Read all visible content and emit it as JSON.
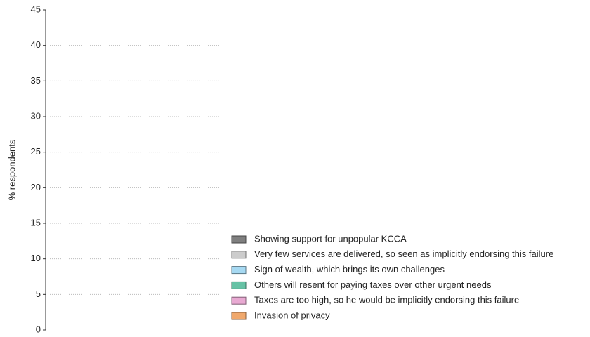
{
  "chart_data": {
    "type": "bar",
    "y_label": "% respondents",
    "categories": [
      null
    ],
    "series": [
      {
        "name": "Showing support for unpopular KCCA",
        "color": "#7f7f7f",
        "values": [
          0
        ]
      },
      {
        "name": "Very few services are delivered, so seen as implicitly endorsing this failure",
        "color": "#cccccc",
        "values": [
          0
        ]
      },
      {
        "name": "Sign of wealth, which brings its own challenges",
        "color": "#a6d9f2",
        "values": [
          0
        ]
      },
      {
        "name": "Others will resent for paying taxes over other urgent needs",
        "color": "#66c2a5",
        "values": [
          0
        ]
      },
      {
        "name": "Taxes are too high, so he would be implicitly endorsing this failure",
        "color": "#e8a9d2",
        "values": [
          0
        ]
      },
      {
        "name": "Invasion of privacy",
        "color": "#f0a86c",
        "values": [
          0
        ]
      }
    ],
    "ylim": [
      0,
      45
    ],
    "yticks": [
      0,
      5,
      10,
      15,
      20,
      25,
      30,
      35,
      40,
      45
    ],
    "grid": true,
    "legend": "lower right"
  }
}
